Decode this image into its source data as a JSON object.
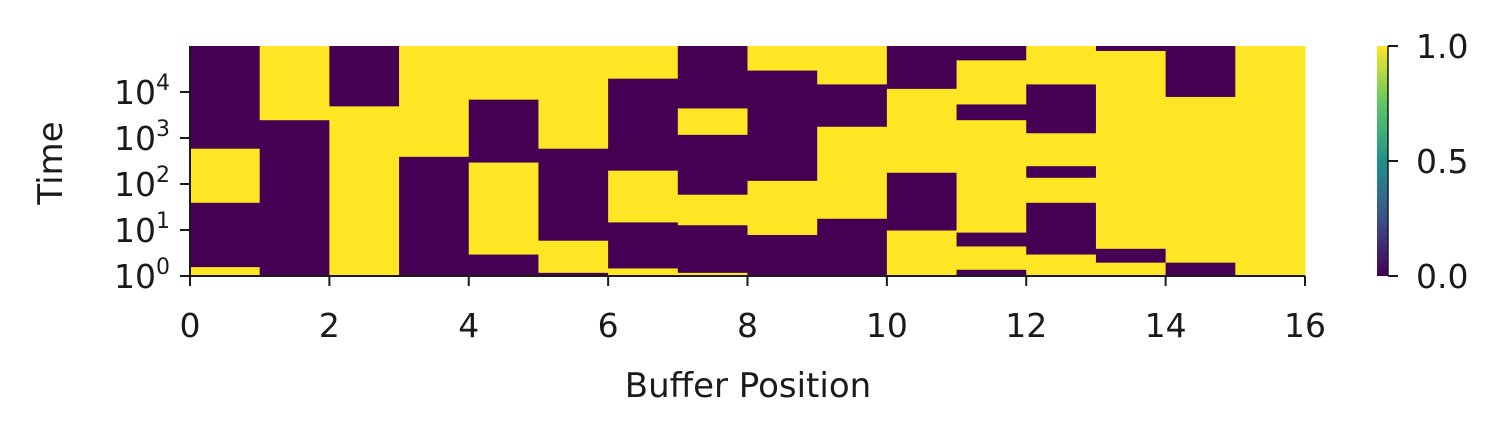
{
  "chart_data": {
    "type": "heatmap",
    "title": "",
    "xlabel": "Buffer Position",
    "ylabel": "Time",
    "xlim": [
      0,
      16
    ],
    "x_ticks": [
      "0",
      "2",
      "4",
      "6",
      "8",
      "10",
      "12",
      "14",
      "16"
    ],
    "y_scale": "log",
    "ylim": [
      1,
      100000
    ],
    "y_ticks": [
      {
        "base": "10",
        "exp": "0"
      },
      {
        "base": "10",
        "exp": "1"
      },
      {
        "base": "10",
        "exp": "2"
      },
      {
        "base": "10",
        "exp": "3"
      },
      {
        "base": "10",
        "exp": "4"
      }
    ],
    "colormap": "viridis",
    "colorbar": {
      "min": 0.0,
      "max": 1.0,
      "ticks": [
        "0.0",
        "0.5",
        "1.0"
      ],
      "colors": [
        "#440154",
        "#3b528b",
        "#21918c",
        "#5ec962",
        "#fde725"
      ]
    },
    "value_colors": {
      "0": "#440154",
      "1": "#fde725"
    },
    "columns": [
      {
        "position": 0,
        "segments": [
          [
            1,
            1.6,
            1
          ],
          [
            1.6,
            40,
            0
          ],
          [
            40,
            600,
            1
          ],
          [
            600,
            100000,
            0
          ]
        ]
      },
      {
        "position": 1,
        "segments": [
          [
            1,
            2500,
            0
          ],
          [
            2500,
            100000,
            1
          ]
        ]
      },
      {
        "position": 2,
        "segments": [
          [
            1,
            5000,
            1
          ],
          [
            5000,
            100000,
            0
          ]
        ]
      },
      {
        "position": 3,
        "segments": [
          [
            1,
            400,
            0
          ],
          [
            400,
            100000,
            1
          ]
        ]
      },
      {
        "position": 4,
        "segments": [
          [
            1,
            3,
            0
          ],
          [
            3,
            300,
            1
          ],
          [
            300,
            7000,
            0
          ],
          [
            7000,
            100000,
            1
          ]
        ]
      },
      {
        "position": 5,
        "segments": [
          [
            1,
            1.2,
            0
          ],
          [
            1.2,
            6,
            1
          ],
          [
            6,
            70,
            0
          ],
          [
            70,
            600,
            0
          ],
          [
            600,
            7000,
            1
          ],
          [
            7000,
            100000,
            1
          ]
        ]
      },
      {
        "position": 6,
        "segments": [
          [
            1,
            1.5,
            1
          ],
          [
            1.5,
            15,
            0
          ],
          [
            15,
            200,
            1
          ],
          [
            200,
            20000,
            0
          ],
          [
            20000,
            100000,
            1
          ]
        ]
      },
      {
        "position": 7,
        "segments": [
          [
            1,
            1.2,
            1
          ],
          [
            1.2,
            13,
            0
          ],
          [
            13,
            60,
            1
          ],
          [
            60,
            1200,
            0
          ],
          [
            1200,
            4500,
            1
          ],
          [
            4500,
            100000,
            0
          ]
        ]
      },
      {
        "position": 8,
        "segments": [
          [
            1,
            8,
            0
          ],
          [
            8,
            120,
            1
          ],
          [
            120,
            30000,
            0
          ],
          [
            30000,
            100000,
            1
          ]
        ]
      },
      {
        "position": 9,
        "segments": [
          [
            1,
            18,
            0
          ],
          [
            18,
            1800,
            1
          ],
          [
            1800,
            15000,
            0
          ],
          [
            15000,
            100000,
            1
          ]
        ]
      },
      {
        "position": 10,
        "segments": [
          [
            1,
            10,
            1
          ],
          [
            10,
            180,
            0
          ],
          [
            180,
            12000,
            1
          ],
          [
            12000,
            100000,
            0
          ]
        ]
      },
      {
        "position": 11,
        "segments": [
          [
            1,
            1.4,
            0
          ],
          [
            1.4,
            4.5,
            1
          ],
          [
            4.5,
            9,
            0
          ],
          [
            9,
            180,
            1
          ],
          [
            180,
            2500,
            1
          ],
          [
            2500,
            5500,
            0
          ],
          [
            5500,
            50000,
            1
          ],
          [
            50000,
            100000,
            0
          ]
        ]
      },
      {
        "position": 12,
        "segments": [
          [
            1,
            3,
            1
          ],
          [
            3,
            40,
            0
          ],
          [
            40,
            140,
            1
          ],
          [
            140,
            250,
            0
          ],
          [
            250,
            1300,
            1
          ],
          [
            1300,
            15000,
            0
          ],
          [
            15000,
            100000,
            1
          ]
        ]
      },
      {
        "position": 13,
        "segments": [
          [
            1,
            2,
            1
          ],
          [
            2,
            4,
            0
          ],
          [
            4,
            70,
            1
          ],
          [
            70,
            500,
            1
          ],
          [
            500,
            1300,
            1
          ],
          [
            1300,
            80000,
            1
          ],
          [
            80000,
            100000,
            0
          ]
        ]
      },
      {
        "position": 14,
        "segments": [
          [
            1,
            2,
            0
          ],
          [
            2,
            150,
            1
          ],
          [
            150,
            700,
            1
          ],
          [
            700,
            2000,
            1
          ],
          [
            2000,
            8000,
            1
          ],
          [
            8000,
            100000,
            0
          ]
        ]
      },
      {
        "position": 15,
        "segments": [
          [
            1,
            100000,
            1
          ]
        ]
      }
    ]
  }
}
